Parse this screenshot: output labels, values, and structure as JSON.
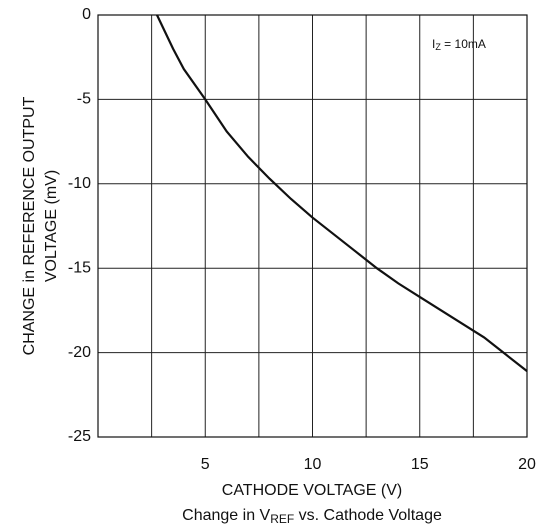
{
  "chart_data": {
    "type": "line",
    "title_parts": [
      "Change in V",
      "REF",
      " vs. Cathode Voltage"
    ],
    "xlabel": "CATHODE VOLTAGE (V)",
    "ylabel_lines": [
      "CHANGE in REFERENCE OUTPUT",
      "VOLTAGE (mV)"
    ],
    "annotation_parts": [
      "I",
      "Z",
      " = 10mA"
    ],
    "xlim": [
      0,
      20
    ],
    "ylim": [
      -25,
      0
    ],
    "xticks": [
      5,
      10,
      15,
      20
    ],
    "xgrid": [
      0,
      2.5,
      5,
      7.5,
      10,
      12.5,
      15,
      17.5,
      20
    ],
    "yticks": [
      0,
      -5,
      -10,
      -15,
      -20,
      -25
    ],
    "grid": true,
    "series": [
      {
        "color": "#111111",
        "x": [
          2.75,
          3.5,
          4,
          5,
          6,
          7,
          8,
          9,
          10,
          11,
          12,
          13,
          14,
          15,
          16,
          17,
          18,
          19,
          20
        ],
        "values": [
          0,
          -2,
          -3.2,
          -5,
          -6.9,
          -8.4,
          -9.7,
          -10.9,
          -12,
          -13,
          -14,
          -15,
          -15.9,
          -16.7,
          -17.5,
          -18.3,
          -19.1,
          -20.1,
          -21.1
        ]
      }
    ]
  }
}
